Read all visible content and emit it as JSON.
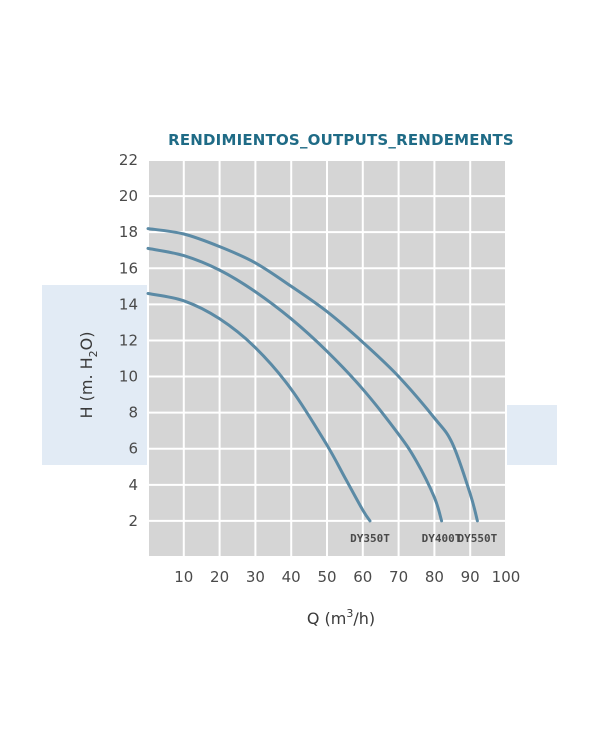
{
  "chart_data": {
    "type": "line",
    "title": "RENDIMIENTOS_OUTPUTS_RENDEMENTS",
    "xlabel": {
      "main": "Q (m",
      "sup": "3",
      "tail": "/h)"
    },
    "ylabel": {
      "main": "H (m. H",
      "sub": "2",
      "tail": "O)"
    },
    "xlim": [
      0,
      100
    ],
    "ylim": [
      0,
      22
    ],
    "xticks": [
      10,
      20,
      30,
      40,
      50,
      60,
      70,
      80,
      90,
      100
    ],
    "yticks": [
      2,
      4,
      6,
      8,
      10,
      12,
      14,
      16,
      18,
      20,
      22
    ],
    "grid": true,
    "series": [
      {
        "name": "DY350T",
        "x": [
          0,
          10,
          20,
          30,
          40,
          50,
          55,
          60,
          62
        ],
        "y": [
          14.6,
          14.2,
          13.2,
          11.6,
          9.3,
          6.2,
          4.4,
          2.6,
          2.0
        ]
      },
      {
        "name": "DY400T",
        "x": [
          0,
          10,
          20,
          30,
          40,
          50,
          60,
          70,
          75,
          80,
          82
        ],
        "y": [
          17.1,
          16.7,
          15.9,
          14.7,
          13.2,
          11.4,
          9.3,
          6.8,
          5.3,
          3.3,
          2.0
        ]
      },
      {
        "name": "DY550T",
        "x": [
          0,
          10,
          20,
          30,
          40,
          50,
          60,
          70,
          80,
          85,
          90,
          92
        ],
        "y": [
          18.2,
          17.9,
          17.2,
          16.3,
          15.0,
          13.6,
          11.9,
          10.0,
          7.7,
          6.3,
          3.5,
          2.0
        ]
      }
    ]
  },
  "colors": {
    "plot_bg": "#d5d5d5",
    "grid": "#ffffff",
    "curve": "#5b8aa5",
    "title": "#1f6b86",
    "watermark": "#e2ebf5"
  }
}
